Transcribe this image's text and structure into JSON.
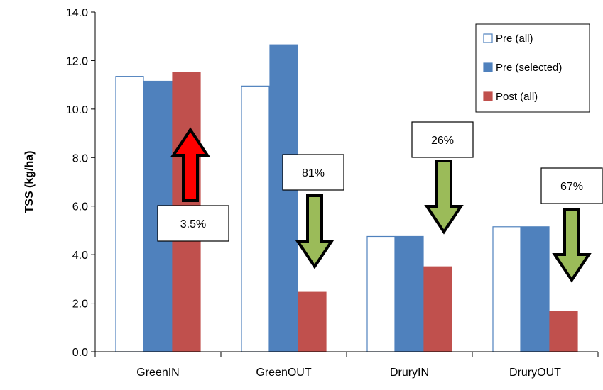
{
  "chart_data": {
    "type": "bar",
    "title": "",
    "xlabel": "",
    "ylabel": "TSS (kg/ha)",
    "ylim": [
      0,
      14
    ],
    "yticks": [
      "0.0",
      "2.0",
      "4.0",
      "6.0",
      "8.0",
      "10.0",
      "12.0",
      "14.0"
    ],
    "grid": false,
    "legend_position": "top-right",
    "categories": [
      "GreenIN",
      "GreenOUT",
      "DruryIN",
      "DruryOUT"
    ],
    "series": [
      {
        "name": "Pre (all)",
        "values": [
          11.35,
          10.95,
          4.75,
          5.15
        ],
        "color": "#ffffff",
        "stroke": "#4f81bd"
      },
      {
        "name": "Pre (selected)",
        "values": [
          11.15,
          12.65,
          4.75,
          5.15
        ],
        "color": "#4f81bd",
        "stroke": "#4f81bd"
      },
      {
        "name": "Post (all)",
        "values": [
          11.5,
          2.45,
          3.5,
          1.65
        ],
        "color": "#c0504d",
        "stroke": "#c0504d"
      }
    ],
    "annotations": [
      {
        "category": "GreenIN",
        "label": "3.5%",
        "direction": "up",
        "color": "#ff0000"
      },
      {
        "category": "GreenOUT",
        "label": "81%",
        "direction": "down",
        "color": "#9bbb59"
      },
      {
        "category": "DruryIN",
        "label": "26%",
        "direction": "down",
        "color": "#9bbb59"
      },
      {
        "category": "DruryOUT",
        "label": "67%",
        "direction": "down",
        "color": "#9bbb59"
      }
    ]
  }
}
